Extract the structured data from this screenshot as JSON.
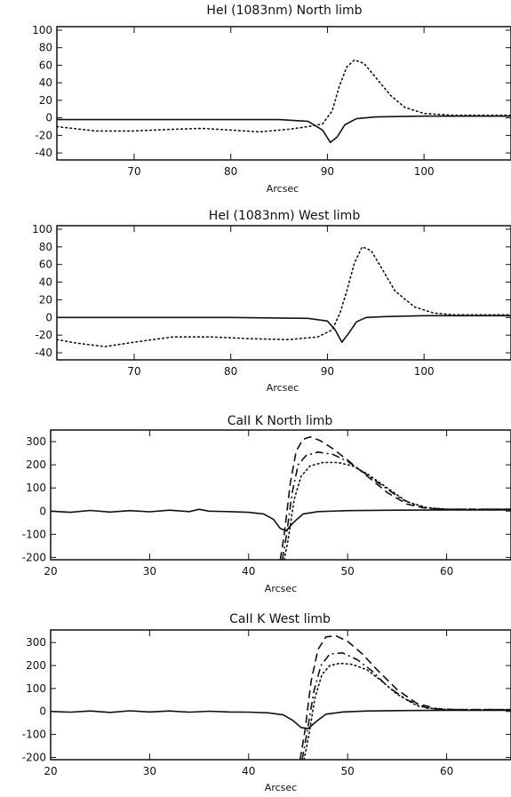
{
  "chart_data": [
    {
      "type": "line",
      "title": "HeI (1083nm) North limb",
      "xlabel": "Arcsec",
      "ylabel": "",
      "xlim": [
        62,
        109
      ],
      "ylim": [
        -48,
        104
      ],
      "x_ticks": [
        70,
        80,
        90,
        100
      ],
      "y_ticks": [
        100,
        80,
        60,
        40,
        20,
        0,
        -20,
        -40
      ],
      "series": [
        {
          "style": "dotted",
          "x": [
            62,
            66,
            70,
            74,
            77,
            80,
            83,
            86,
            88,
            89.5,
            90.5,
            91.2,
            92,
            92.8,
            93.8,
            95,
            96.5,
            98,
            100,
            103,
            109
          ],
          "y": [
            -10,
            -15,
            -15,
            -13,
            -12,
            -14,
            -16,
            -13,
            -10,
            -7,
            8,
            35,
            58,
            66,
            62,
            46,
            26,
            12,
            5,
            3,
            3
          ]
        },
        {
          "style": "solid",
          "x": [
            62,
            75,
            85,
            88,
            89.5,
            90.3,
            91,
            91.8,
            93,
            95,
            100,
            109
          ],
          "y": [
            -2,
            -2,
            -2,
            -4,
            -14,
            -28,
            -22,
            -8,
            -1,
            1,
            2,
            2
          ]
        }
      ]
    },
    {
      "type": "line",
      "title": "HeI (1083nm) West limb",
      "xlabel": "Arcsec",
      "ylabel": "",
      "xlim": [
        62,
        109
      ],
      "ylim": [
        -48,
        104
      ],
      "x_ticks": [
        70,
        80,
        90,
        100
      ],
      "y_ticks": [
        100,
        80,
        60,
        40,
        20,
        0,
        -20,
        -40
      ],
      "series": [
        {
          "style": "dotted",
          "x": [
            62,
            64,
            67,
            70,
            74,
            78,
            82,
            86,
            89,
            90.5,
            91.3,
            92,
            92.8,
            93.6,
            94.5,
            95.5,
            97,
            99,
            101,
            103,
            109
          ],
          "y": [
            -25,
            -29,
            -33,
            -28,
            -22,
            -22,
            -24,
            -25,
            -22,
            -14,
            5,
            30,
            62,
            80,
            76,
            58,
            30,
            12,
            5,
            3,
            3
          ]
        },
        {
          "style": "solid",
          "x": [
            62,
            80,
            88,
            90,
            90.8,
            91.5,
            92.2,
            93,
            94,
            96,
            100,
            109
          ],
          "y": [
            0,
            0,
            -1,
            -4,
            -14,
            -28,
            -18,
            -5,
            0,
            1,
            2,
            2
          ]
        }
      ]
    },
    {
      "type": "line",
      "title": "CaII K North limb",
      "xlabel": "Arcsec",
      "ylabel": "",
      "xlim": [
        20,
        66.5
      ],
      "ylim": [
        -210,
        350
      ],
      "x_ticks": [
        20,
        30,
        40,
        50,
        60
      ],
      "y_ticks": [
        300,
        200,
        100,
        0,
        -100,
        -200
      ],
      "series": [
        {
          "style": "dotted",
          "x": [
            43.6,
            44,
            44.6,
            45.3,
            46.2,
            47.5,
            49,
            50.5,
            52,
            54,
            56,
            58,
            60,
            66.5
          ],
          "y": [
            -210,
            -120,
            50,
            150,
            195,
            210,
            210,
            195,
            160,
            100,
            40,
            15,
            8,
            8
          ]
        },
        {
          "style": "dash-dot",
          "x": [
            43.4,
            43.8,
            44.4,
            45,
            45.8,
            47,
            48.5,
            50,
            51.5,
            53.5,
            55.5,
            57.5,
            60,
            66.5
          ],
          "y": [
            -210,
            -110,
            80,
            200,
            240,
            255,
            245,
            215,
            170,
            110,
            50,
            15,
            8,
            8
          ]
        },
        {
          "style": "dashed",
          "x": [
            43.2,
            43.6,
            44.2,
            44.8,
            45.5,
            46.2,
            47.2,
            48.5,
            50,
            52,
            54,
            56,
            58,
            60,
            66.5
          ],
          "y": [
            -210,
            -100,
            120,
            260,
            310,
            320,
            305,
            270,
            220,
            150,
            80,
            30,
            12,
            8,
            8
          ]
        },
        {
          "style": "solid",
          "x": [
            20,
            22,
            24,
            26,
            28,
            30,
            32,
            34,
            35,
            36,
            38,
            40,
            41.5,
            42.5,
            43.2,
            43.8,
            44.5,
            45.5,
            47,
            50,
            55,
            60,
            66.5
          ],
          "y": [
            0,
            -5,
            3,
            -4,
            2,
            -3,
            4,
            -2,
            8,
            0,
            -2,
            -5,
            -12,
            -35,
            -75,
            -85,
            -50,
            -12,
            -2,
            2,
            4,
            5,
            5
          ]
        }
      ]
    },
    {
      "type": "line",
      "title": "CaII K West limb",
      "xlabel": "Arcsec",
      "ylabel": "",
      "xlim": [
        20,
        66.5
      ],
      "ylim": [
        -210,
        355
      ],
      "x_ticks": [
        20,
        30,
        40,
        50,
        60
      ],
      "y_ticks": [
        300,
        200,
        100,
        0,
        -100,
        -200
      ],
      "series": [
        {
          "style": "dotted",
          "x": [
            45.6,
            46.1,
            46.7,
            47.4,
            48.2,
            49.2,
            50.5,
            52,
            53.5,
            55,
            57,
            59,
            61,
            66.5
          ],
          "y": [
            -210,
            -100,
            60,
            160,
            200,
            210,
            205,
            180,
            130,
            75,
            25,
            10,
            8,
            8
          ]
        },
        {
          "style": "dash-dot",
          "x": [
            45.4,
            45.9,
            46.6,
            47.3,
            48.2,
            49.5,
            51,
            52.5,
            54,
            56,
            58,
            60,
            66.5
          ],
          "y": [
            -210,
            -90,
            90,
            200,
            250,
            255,
            225,
            175,
            110,
            50,
            15,
            8,
            8
          ]
        },
        {
          "style": "dashed",
          "x": [
            45.2,
            45.7,
            46.3,
            47,
            47.8,
            48.8,
            50,
            51.5,
            53,
            55,
            57,
            59,
            61,
            66.5
          ],
          "y": [
            -210,
            -80,
            130,
            270,
            325,
            330,
            305,
            250,
            180,
            95,
            35,
            12,
            8,
            8
          ]
        },
        {
          "style": "solid",
          "x": [
            20,
            22,
            24,
            26,
            28,
            30,
            32,
            34,
            36,
            38,
            40,
            42,
            43.5,
            44.5,
            45.3,
            46,
            46.8,
            47.8,
            49.5,
            52,
            56,
            60,
            66.5
          ],
          "y": [
            0,
            -3,
            2,
            -4,
            3,
            -2,
            2,
            -3,
            1,
            -2,
            -3,
            -6,
            -15,
            -40,
            -70,
            -75,
            -45,
            -12,
            -2,
            2,
            4,
            5,
            5
          ]
        }
      ]
    }
  ]
}
